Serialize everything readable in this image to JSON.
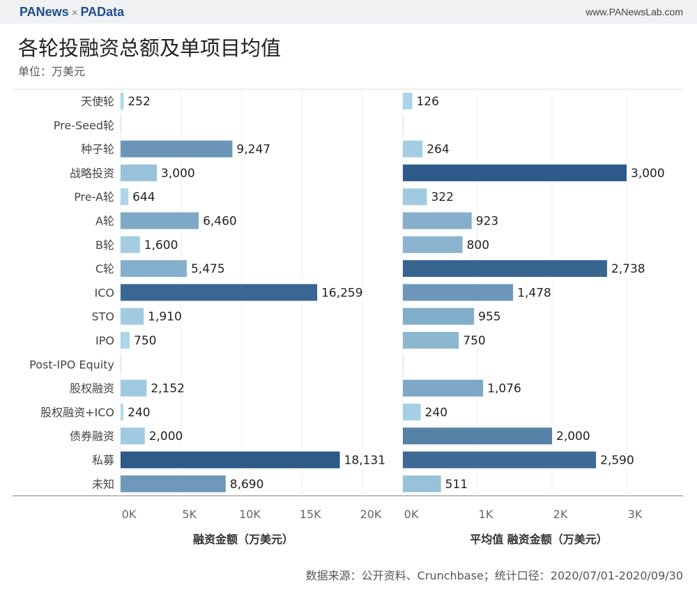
{
  "header": {
    "logo_left": "PANews",
    "logo_sep": "×",
    "logo_right": "PAData",
    "site": "www.PANewsLab.com"
  },
  "title": "各轮投融资总额及单项目均值",
  "unit": "单位：万美元",
  "source": "数据来源：公开资料、Crunchbase；统计口径：2020/07/01-2020/09/30",
  "colors": {
    "light": "#b3dcef",
    "dark": "#2d5a88"
  },
  "chart_data": [
    {
      "type": "bar",
      "orientation": "horizontal",
      "xlabel": "融资金额（万美元）",
      "xlim": [
        0,
        20000
      ],
      "ticks": [
        0,
        5000,
        10000,
        15000,
        20000
      ],
      "tick_labels": [
        "0K",
        "5K",
        "10K",
        "15K",
        "20K"
      ],
      "categories": [
        "天使轮",
        "Pre-Seed轮",
        "种子轮",
        "战略投资",
        "Pre-A轮",
        "A轮",
        "B轮",
        "C轮",
        "ICO",
        "STO",
        "IPO",
        "Post-IPO Equity",
        "股权融资",
        "股权融资+ICO",
        "债券融资",
        "私募",
        "未知"
      ],
      "values": [
        252,
        null,
        9247,
        3000,
        644,
        6460,
        1600,
        5475,
        16259,
        1910,
        750,
        null,
        2152,
        240,
        2000,
        18131,
        8690
      ],
      "labels": [
        "252",
        "",
        "9,247",
        "3,000",
        "644",
        "6,460",
        "1,600",
        "5,475",
        "16,259",
        "1,910",
        "750",
        "",
        "2,152",
        "240",
        "2,000",
        "18,131",
        "8,690"
      ]
    },
    {
      "type": "bar",
      "orientation": "horizontal",
      "xlabel": "平均值 融资金额（万美元）",
      "xlim": [
        0,
        3500
      ],
      "ticks": [
        0,
        1000,
        2000,
        3000
      ],
      "tick_labels": [
        "0K",
        "1K",
        "2K",
        "3K"
      ],
      "values": [
        126,
        null,
        264,
        3000,
        322,
        923,
        800,
        2738,
        1478,
        955,
        750,
        null,
        1076,
        240,
        2000,
        2590,
        511
      ],
      "labels": [
        "126",
        "",
        "264",
        "3,000",
        "322",
        "923",
        "800",
        "2,738",
        "1,478",
        "955",
        "750",
        "",
        "1,076",
        "240",
        "2,000",
        "2,590",
        "511"
      ]
    }
  ]
}
